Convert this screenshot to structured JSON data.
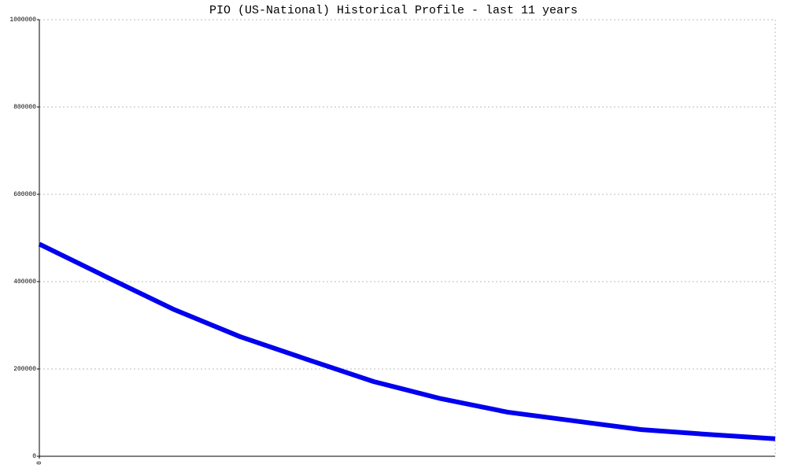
{
  "chart_data": {
    "type": "line",
    "title": "PIO (US-National) Historical Profile - last 11 years",
    "categories": [
      "0",
      null,
      null,
      null,
      null,
      null,
      null,
      null,
      null,
      null,
      null,
      null
    ],
    "series": [
      {
        "name": null,
        "color": "#0000ee",
        "values": [
          486000,
          411000,
          337000,
          274000,
          222000,
          171000,
          132000,
          101000,
          81000,
          61000,
          50000,
          40000
        ]
      }
    ],
    "ylim": [
      0,
      1000000
    ],
    "yticks": [
      0,
      200000,
      400000,
      600000,
      800000,
      1000000
    ],
    "grid": true
  }
}
